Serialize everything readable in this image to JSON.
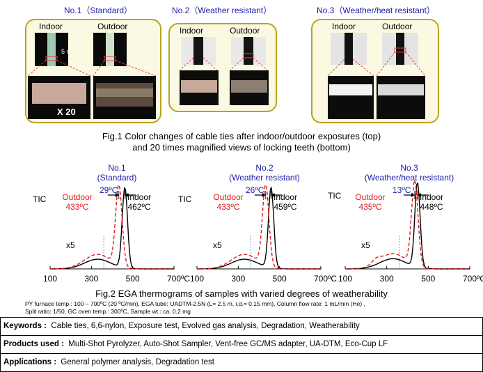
{
  "fig1": {
    "samples": [
      {
        "title": "No.1（Standard）",
        "indoor": "Indoor",
        "outdoor": "Outdoor",
        "scale": "5 mm",
        "mag": "X 20"
      },
      {
        "title": "No.2（Weather resistant）",
        "indoor": "Indoor",
        "outdoor": "Outdoor"
      },
      {
        "title": "No.3（Weather/heat resistant）",
        "indoor": "Indoor",
        "outdoor": "Outdoor"
      }
    ],
    "caption_line1": "Fig.1 Color changes of cable ties after indoor/outdoor exposures (top)",
    "caption_line2": "and 20 times magnified views of locking teeth (bottom)"
  },
  "fig2": {
    "charts": [
      {
        "title1": "No.1",
        "title2": "(Standard)",
        "diff": "29ºC",
        "outdoor_label": "Outdoor",
        "outdoor_temp": "433ºC",
        "indoor_label": "Indoor",
        "indoor_temp": "462ºC",
        "x5": "x5"
      },
      {
        "title1": "No.2",
        "title2": "(Weather resistant)",
        "diff": "26ºC",
        "outdoor_label": "Outdoor",
        "outdoor_temp": "433ºC",
        "indoor_label": "Indoor",
        "indoor_temp": "459ºC",
        "x5": "x5"
      },
      {
        "title1": "No.3",
        "title2": "(Weather/heat resistant)",
        "diff": "13ºC",
        "outdoor_label": "Outdoor",
        "outdoor_temp": "435ºC",
        "indoor_label": "Indoor",
        "indoor_temp": "448ºC",
        "x5": "x5"
      }
    ],
    "tic": "TIC",
    "ticks": [
      "100",
      "300",
      "500",
      "700ºC"
    ],
    "caption": "Fig.2  EGA thermograms of samples with varied degrees of weatherability",
    "note1": "PY furnace temp.: 100 – 700ºC (20 ºC/min), EGA tube: UADTM-2.5N (L= 2.5 m, i.d.= 0.15 mm), Column flow rate: 1 mL/min (He) ,",
    "note2": "Split ratio: 1/50, GC oven temp.: 300ºC, Sample wt.: ca. 0.2 mg"
  },
  "info": {
    "keywords_label": "Keywords :",
    "keywords": "Cable ties, 6,6-nylon, Exposure test, Evolved gas analysis, Degradation, Weatherability",
    "products_label": "Products used :",
    "products": "Multi-Shot Pyrolyzer, Auto-Shot Sampler, Vent-free GC/MS adapter, UA-DTM, Eco-Cup LF",
    "applications_label": "Applications :",
    "applications": "General polymer analysis, Degradation test"
  },
  "chart_data": [
    {
      "type": "line",
      "title": "No.1 (Standard)",
      "xlim": [
        100,
        700
      ],
      "x_ticks": [
        100,
        300,
        500,
        700
      ],
      "series": [
        {
          "name": "Outdoor",
          "peak_x": 433
        },
        {
          "name": "Indoor",
          "peak_x": 462
        }
      ]
    },
    {
      "type": "line",
      "title": "No.2 (Weather resistant)",
      "xlim": [
        100,
        700
      ],
      "x_ticks": [
        100,
        300,
        500,
        700
      ],
      "series": [
        {
          "name": "Outdoor",
          "peak_x": 433
        },
        {
          "name": "Indoor",
          "peak_x": 459
        }
      ]
    },
    {
      "type": "line",
      "title": "No.3 (Weather/heat resistant)",
      "xlim": [
        100,
        700
      ],
      "x_ticks": [
        100,
        300,
        500,
        700
      ],
      "series": [
        {
          "name": "Outdoor",
          "peak_x": 435
        },
        {
          "name": "Indoor",
          "peak_x": 448
        }
      ]
    }
  ],
  "colors": {
    "outdoor": "#e0191e",
    "indoor": "#000000",
    "title_blue": "#1a1aa8",
    "panel_border": "#b9a41c"
  }
}
